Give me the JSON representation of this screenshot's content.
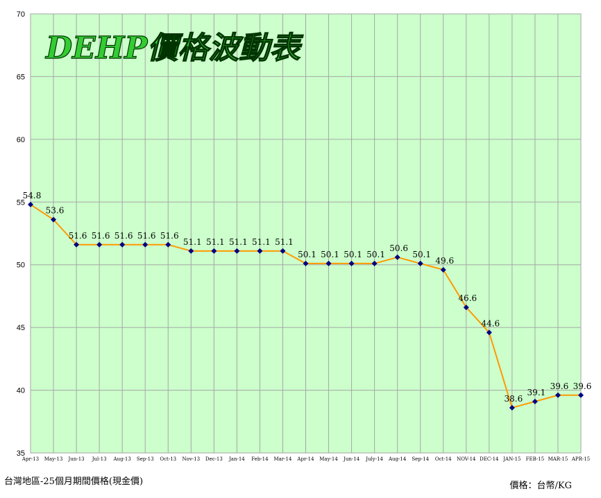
{
  "chart_data": {
    "type": "line",
    "title": "DEHP價格波動表",
    "categories": [
      "Apr-13",
      "May-13",
      "Jun-13",
      "Jul-13",
      "Aug-13",
      "Sep-13",
      "Oct-13",
      "Nov-13",
      "Dec-13",
      "Jan-14",
      "Feb-14",
      "Mar-14",
      "Apr-14",
      "May-14",
      "Jun-14",
      "July-14",
      "Aug-14",
      "Sep-14",
      "Oct-14",
      "NOV-14",
      "DEC-14",
      "JAN-15",
      "FEB-15",
      "MAR-15",
      "APR-15"
    ],
    "values": [
      54.8,
      53.6,
      51.6,
      51.6,
      51.6,
      51.6,
      51.6,
      51.1,
      51.1,
      51.1,
      51.1,
      51.1,
      50.1,
      50.1,
      50.1,
      50.1,
      50.6,
      50.1,
      49.6,
      46.6,
      44.6,
      38.6,
      39.1,
      39.6,
      39.6
    ],
    "data_labels": [
      "54.8",
      "53.6",
      "51.6",
      "51.6",
      "51.6",
      "51.6",
      "51.6",
      "51.1",
      "51.1",
      "51.1",
      "51.1",
      "51.1",
      "50.1",
      "50.1",
      "50.1",
      "50.1",
      "50.6",
      "50.1",
      "49.6",
      "46.6",
      "44.6",
      "38.6",
      "39.1",
      "39.6",
      "39.6"
    ],
    "ylim": [
      35,
      70
    ],
    "yticks": [
      35,
      40,
      45,
      50,
      55,
      60,
      65,
      70
    ],
    "ytick_labels": [
      "35",
      "40",
      "45",
      "50",
      "55",
      "60",
      "65",
      "70"
    ],
    "grid": true,
    "colors": {
      "plot_background": "#ccffcc",
      "line": "#ff9900",
      "marker": "#000080",
      "grid": "#a6a6a6",
      "title_fill": "#33cc33"
    }
  },
  "footer": {
    "left": "台灣地區-25個月期間價格(現金價)",
    "right": "價格：台幣/KG"
  }
}
